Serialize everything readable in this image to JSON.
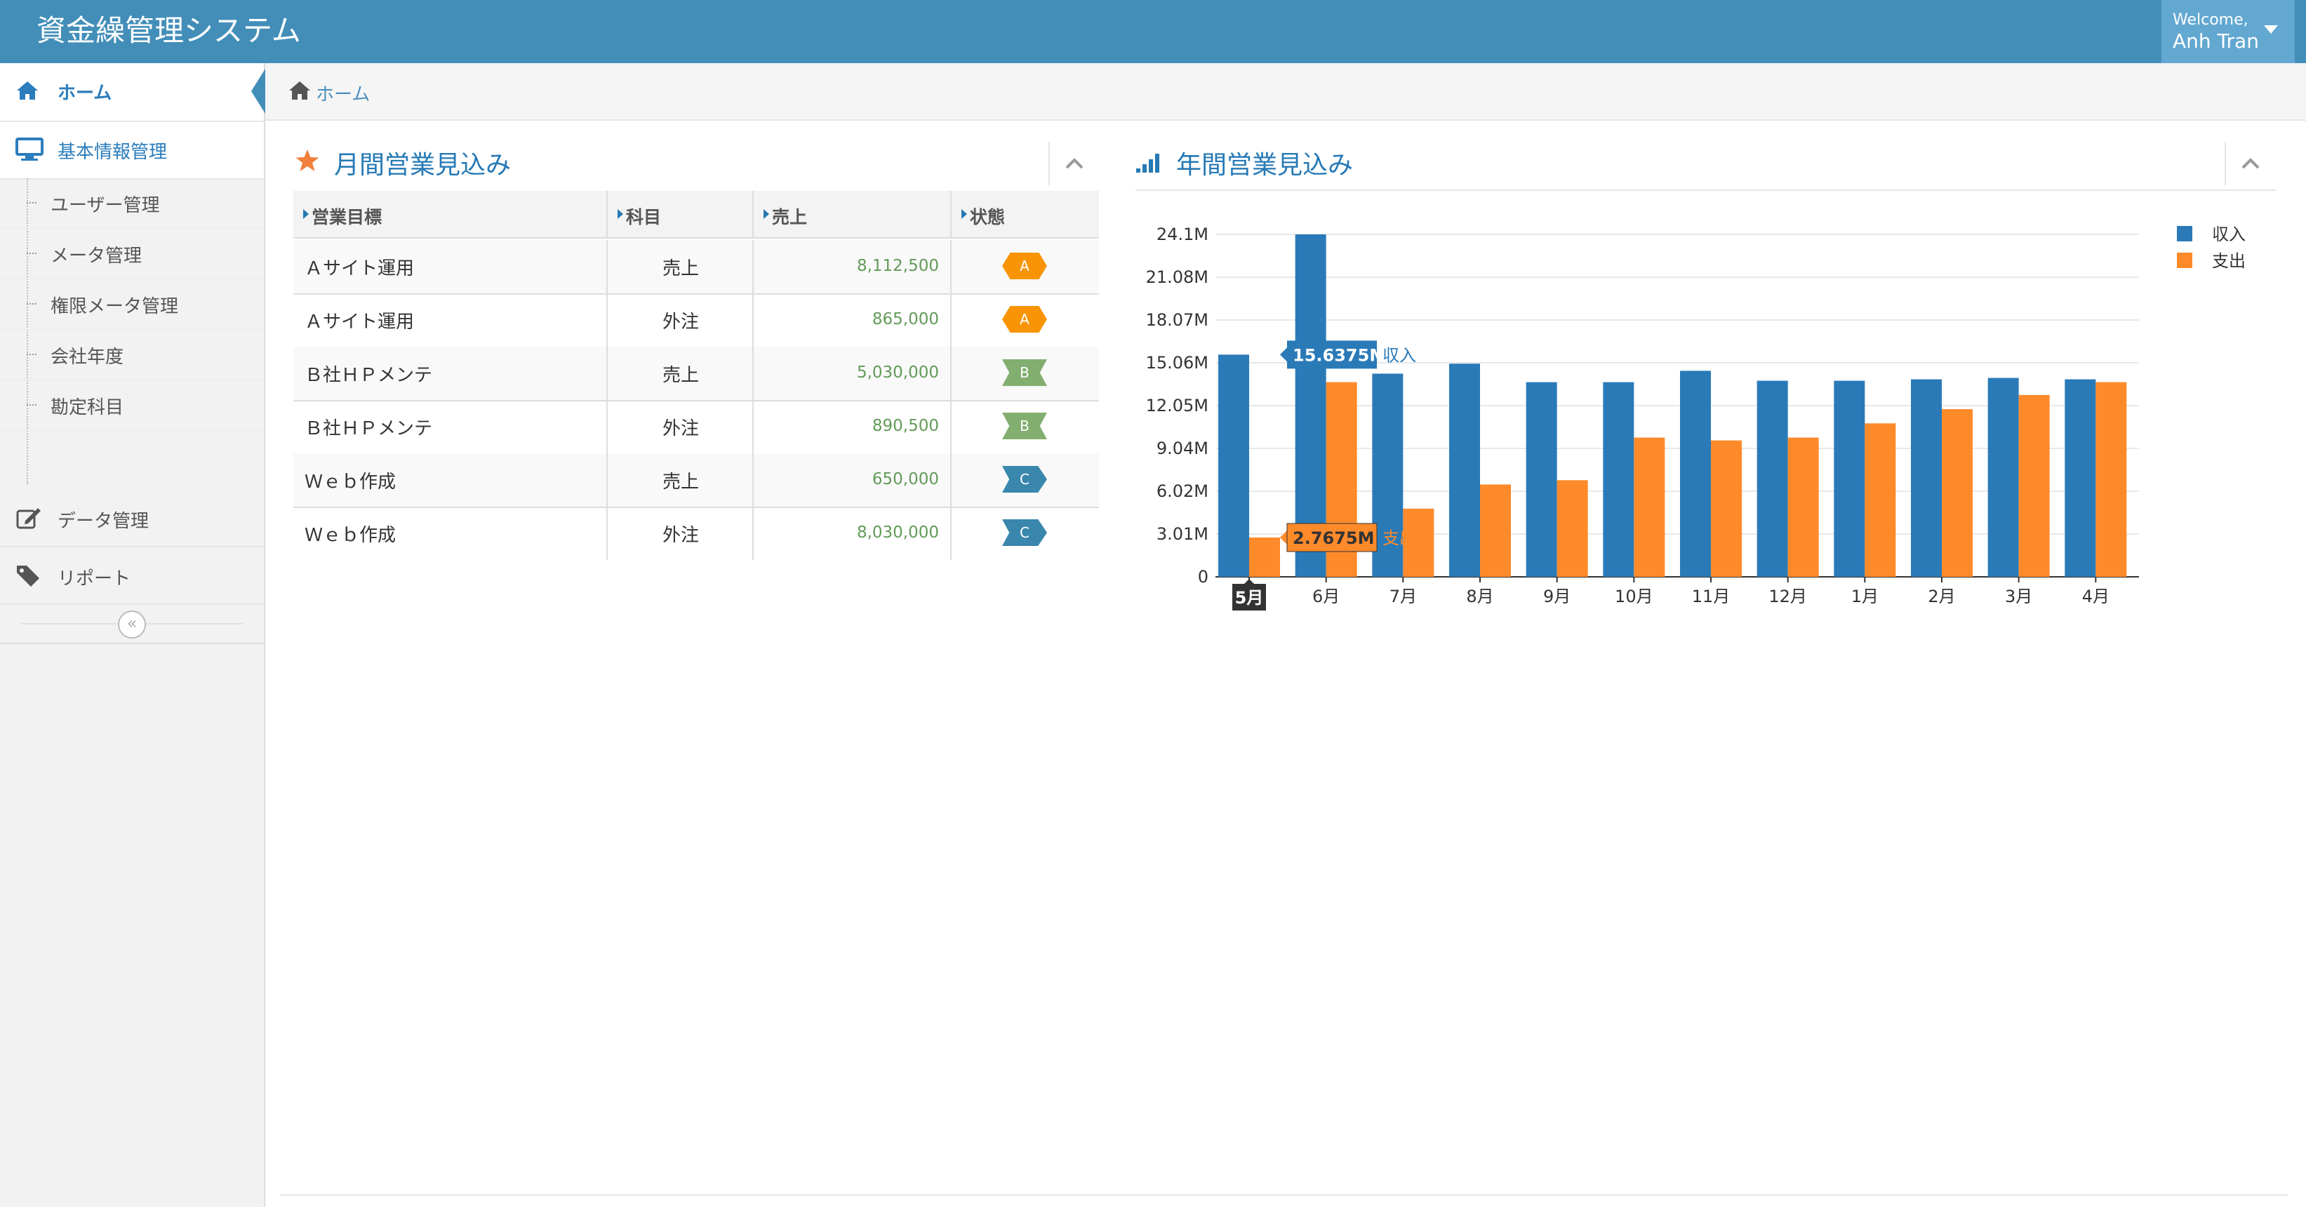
{
  "app": {
    "title": "資金繰管理システム",
    "welcome": "Welcome,",
    "user": "Anh Tran"
  },
  "sidebar": {
    "home": "ホーム",
    "basic": "基本情報管理",
    "sub_items": [
      "ユーザー管理",
      "メータ管理",
      "権限メータ管理",
      "会社年度",
      "勘定科目"
    ],
    "data": "データ管理",
    "report": "リポート",
    "collapse": "«"
  },
  "breadcrumb": {
    "home": "ホーム"
  },
  "monthly": {
    "title": "月間営業見込み",
    "headers": [
      "営業目標",
      "科目",
      "売上",
      "状態"
    ],
    "rows": [
      {
        "name": "Ａサイト運用",
        "subject": "売上",
        "sales": "8,112,500",
        "status": "A"
      },
      {
        "name": "Ａサイト運用",
        "subject": "外注",
        "sales": "865,000",
        "status": "A"
      },
      {
        "name": "Ｂ社ＨＰメンテ",
        "subject": "売上",
        "sales": "5,030,000",
        "status": "B"
      },
      {
        "name": "Ｂ社ＨＰメンテ",
        "subject": "外注",
        "sales": "890,500",
        "status": "B"
      },
      {
        "name": "Ｗｅｂ作成",
        "subject": "売上",
        "sales": "650,000",
        "status": "C"
      },
      {
        "name": "Ｗｅｂ作成",
        "subject": "外注",
        "sales": "8,030,000",
        "status": "C"
      }
    ]
  },
  "annual": {
    "title": "年間営業見込み"
  },
  "colors": {
    "income": "#2a7ab8",
    "expense": "#ff8a2a",
    "accent": "#438eb9"
  },
  "chart_data": {
    "type": "bar",
    "categories": [
      "5月",
      "6月",
      "7月",
      "8月",
      "9月",
      "10月",
      "11月",
      "12月",
      "1月",
      "2月",
      "3月",
      "4月"
    ],
    "series": [
      {
        "name": "収入",
        "values": [
          15.6375,
          24.1,
          14.3,
          15.0,
          13.7,
          13.7,
          14.5,
          13.8,
          13.8,
          13.9,
          14.0,
          13.9
        ]
      },
      {
        "name": "支出",
        "values": [
          2.7675,
          13.7,
          4.8,
          6.5,
          6.8,
          9.8,
          9.6,
          9.8,
          10.8,
          11.8,
          12.8,
          13.7
        ]
      }
    ],
    "ylim": [
      0,
      24.1
    ],
    "yticks": [
      "0",
      "3.01M",
      "6.02M",
      "9.04M",
      "12.05M",
      "15.06M",
      "18.07M",
      "21.08M",
      "24.1M"
    ],
    "legend_position": "top-right",
    "grid": true,
    "tooltips": [
      {
        "value": "15.6375M",
        "series": "収入"
      },
      {
        "value": "2.7675M",
        "series": "支出"
      }
    ],
    "highlighted_category": "5月"
  }
}
